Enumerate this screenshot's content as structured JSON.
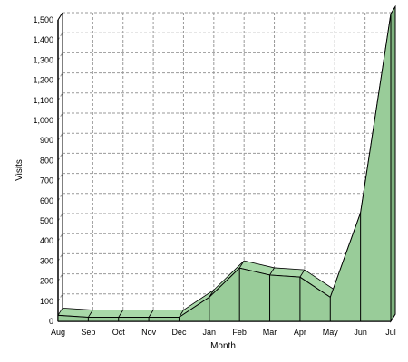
{
  "chart_data": {
    "type": "area",
    "xlabel": "Month",
    "ylabel": "Visits",
    "categories": [
      "Aug",
      "Sep",
      "Oct",
      "Nov",
      "Dec",
      "Jan",
      "Feb",
      "Mar",
      "Apr",
      "May",
      "Jun",
      "Jul"
    ],
    "series": [
      {
        "values": [
          30,
          20,
          20,
          20,
          20,
          120,
          265,
          230,
          220,
          120,
          540,
          1530
        ]
      }
    ],
    "ylim": [
      0,
      1500
    ],
    "yticks": [
      0,
      100,
      200,
      300,
      400,
      500,
      600,
      700,
      800,
      900,
      1000,
      1100,
      1200,
      1300,
      1400,
      1500
    ],
    "ytick_labels": [
      "0",
      "100",
      "200",
      "300",
      "400",
      "500",
      "600",
      "700",
      "800",
      "900",
      "1,000",
      "1,100",
      "1,200",
      "1,300",
      "1,400",
      "1,500"
    ],
    "grid": true,
    "three_d": true,
    "colors": {
      "area_top": "#a8d8a8",
      "area_front": "#99cc99",
      "outline": "#000000",
      "grid": "#999999",
      "plot_background": "#ffffff"
    }
  }
}
